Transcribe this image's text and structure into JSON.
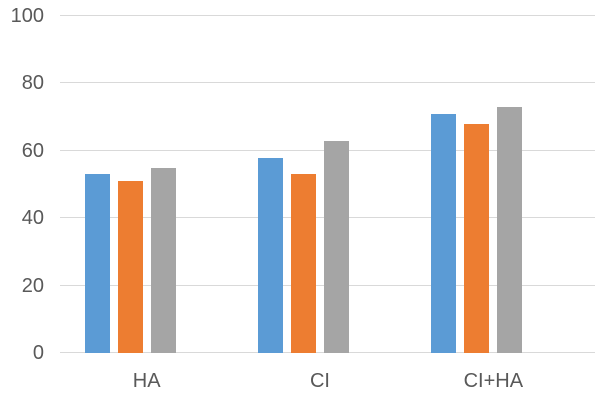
{
  "chart_data": {
    "type": "bar",
    "title": "",
    "xlabel": "",
    "ylabel": "",
    "categories": [
      "HA",
      "CI",
      "CI+HA"
    ],
    "series": [
      {
        "name": "series-blue",
        "color": "#5B9BD5",
        "values": [
          53,
          58,
          71
        ]
      },
      {
        "name": "series-orange",
        "color": "#ED7D31",
        "values": [
          51,
          53,
          68
        ]
      },
      {
        "name": "series-gray",
        "color": "#A5A5A5",
        "values": [
          55,
          63,
          73
        ]
      }
    ],
    "ylim": [
      0,
      100
    ],
    "yticks": [
      0,
      20,
      40,
      60,
      80,
      100
    ],
    "grid": true,
    "legend": false
  },
  "styles": {
    "background": "#FFFFFF",
    "gridline_color": "#D9D9D9",
    "axis_line_color": "#D9D9D9",
    "tick_label_color": "#595959"
  }
}
